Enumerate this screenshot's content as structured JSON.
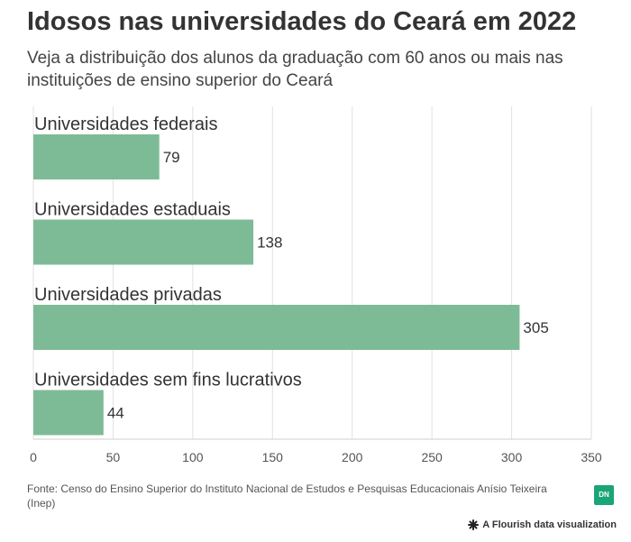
{
  "header": {
    "title": "Idosos nas universidades do Ceará em 2022",
    "subtitle": "Veja a distribuição dos alunos da graduação com 60 anos ou mais nas instituições de ensino superior do Ceará"
  },
  "chart_data": {
    "type": "bar",
    "orientation": "horizontal",
    "categories": [
      "Universidades federais",
      "Universidades estaduais",
      "Universidades privadas",
      "Universidades sem fins lucrativos"
    ],
    "values": [
      79,
      138,
      305,
      44
    ],
    "xlim": [
      0,
      350
    ],
    "xticks": [
      0,
      50,
      100,
      150,
      200,
      250,
      300,
      350
    ],
    "grid": true,
    "bar_color": "#7dbb96"
  },
  "footer": {
    "source": "Fonte: Censo do Ensino Superior do Instituto Nacional de Estudos e Pesquisas Educacionais Anísio Teixeira (Inep)",
    "logo_text": "DN",
    "credit": "A Flourish data visualization"
  },
  "colors": {
    "bar": "#7dbb96",
    "logo": "#19a577"
  }
}
